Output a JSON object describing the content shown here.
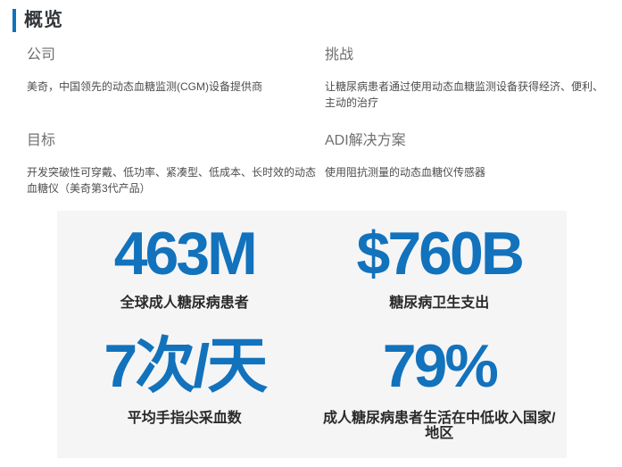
{
  "colors": {
    "accent_blue": "#1272bc",
    "stat_blue": "#1272bc",
    "panel_background": "#f5f5f6",
    "label_gray": "#6f6f6f",
    "body_gray": "#4d4d4d",
    "caption_dark": "#2a2a2a"
  },
  "overview": {
    "title": "概览",
    "sections": [
      {
        "label": "公司",
        "body": "美奇，中国领先的动态血糖监测(CGM)设备提供商"
      },
      {
        "label": "挑战",
        "body": "让糖尿病患者通过使用动态血糖监测设备获得经济、便利、主动的治疗"
      },
      {
        "label": "目标",
        "body": "开发突破性可穿戴、低功率、紧凑型、低成本、长时效的动态血糖仪（美奇第3代产品）"
      },
      {
        "label": "ADI解决方案",
        "body": "使用阻抗测量的动态血糖仪传感器"
      }
    ]
  },
  "stats": [
    {
      "value": "463M",
      "caption": "全球成人糖尿病患者"
    },
    {
      "value": "$760B",
      "caption": "糖尿病卫生支出"
    },
    {
      "value": "7次/天",
      "caption": "平均手指尖采血数"
    },
    {
      "value": "79%",
      "caption": "成人糖尿病患者生活在中低收入国家/地区"
    }
  ]
}
